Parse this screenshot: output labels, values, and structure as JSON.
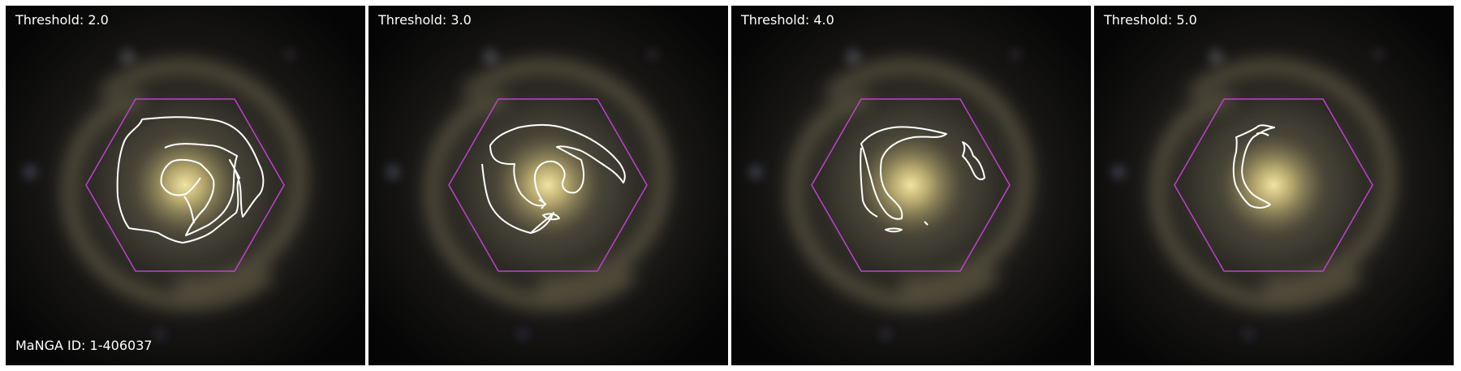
{
  "figure": {
    "galaxy_id_label": "MaNGA ID: 1-406037",
    "hexagon_color": "#c040d0",
    "contour_color": "#ffffff"
  },
  "panels": [
    {
      "threshold_label": "Threshold: 2.0"
    },
    {
      "threshold_label": "Threshold: 3.0"
    },
    {
      "threshold_label": "Threshold: 4.0"
    },
    {
      "threshold_label": "Threshold: 5.0"
    }
  ]
}
